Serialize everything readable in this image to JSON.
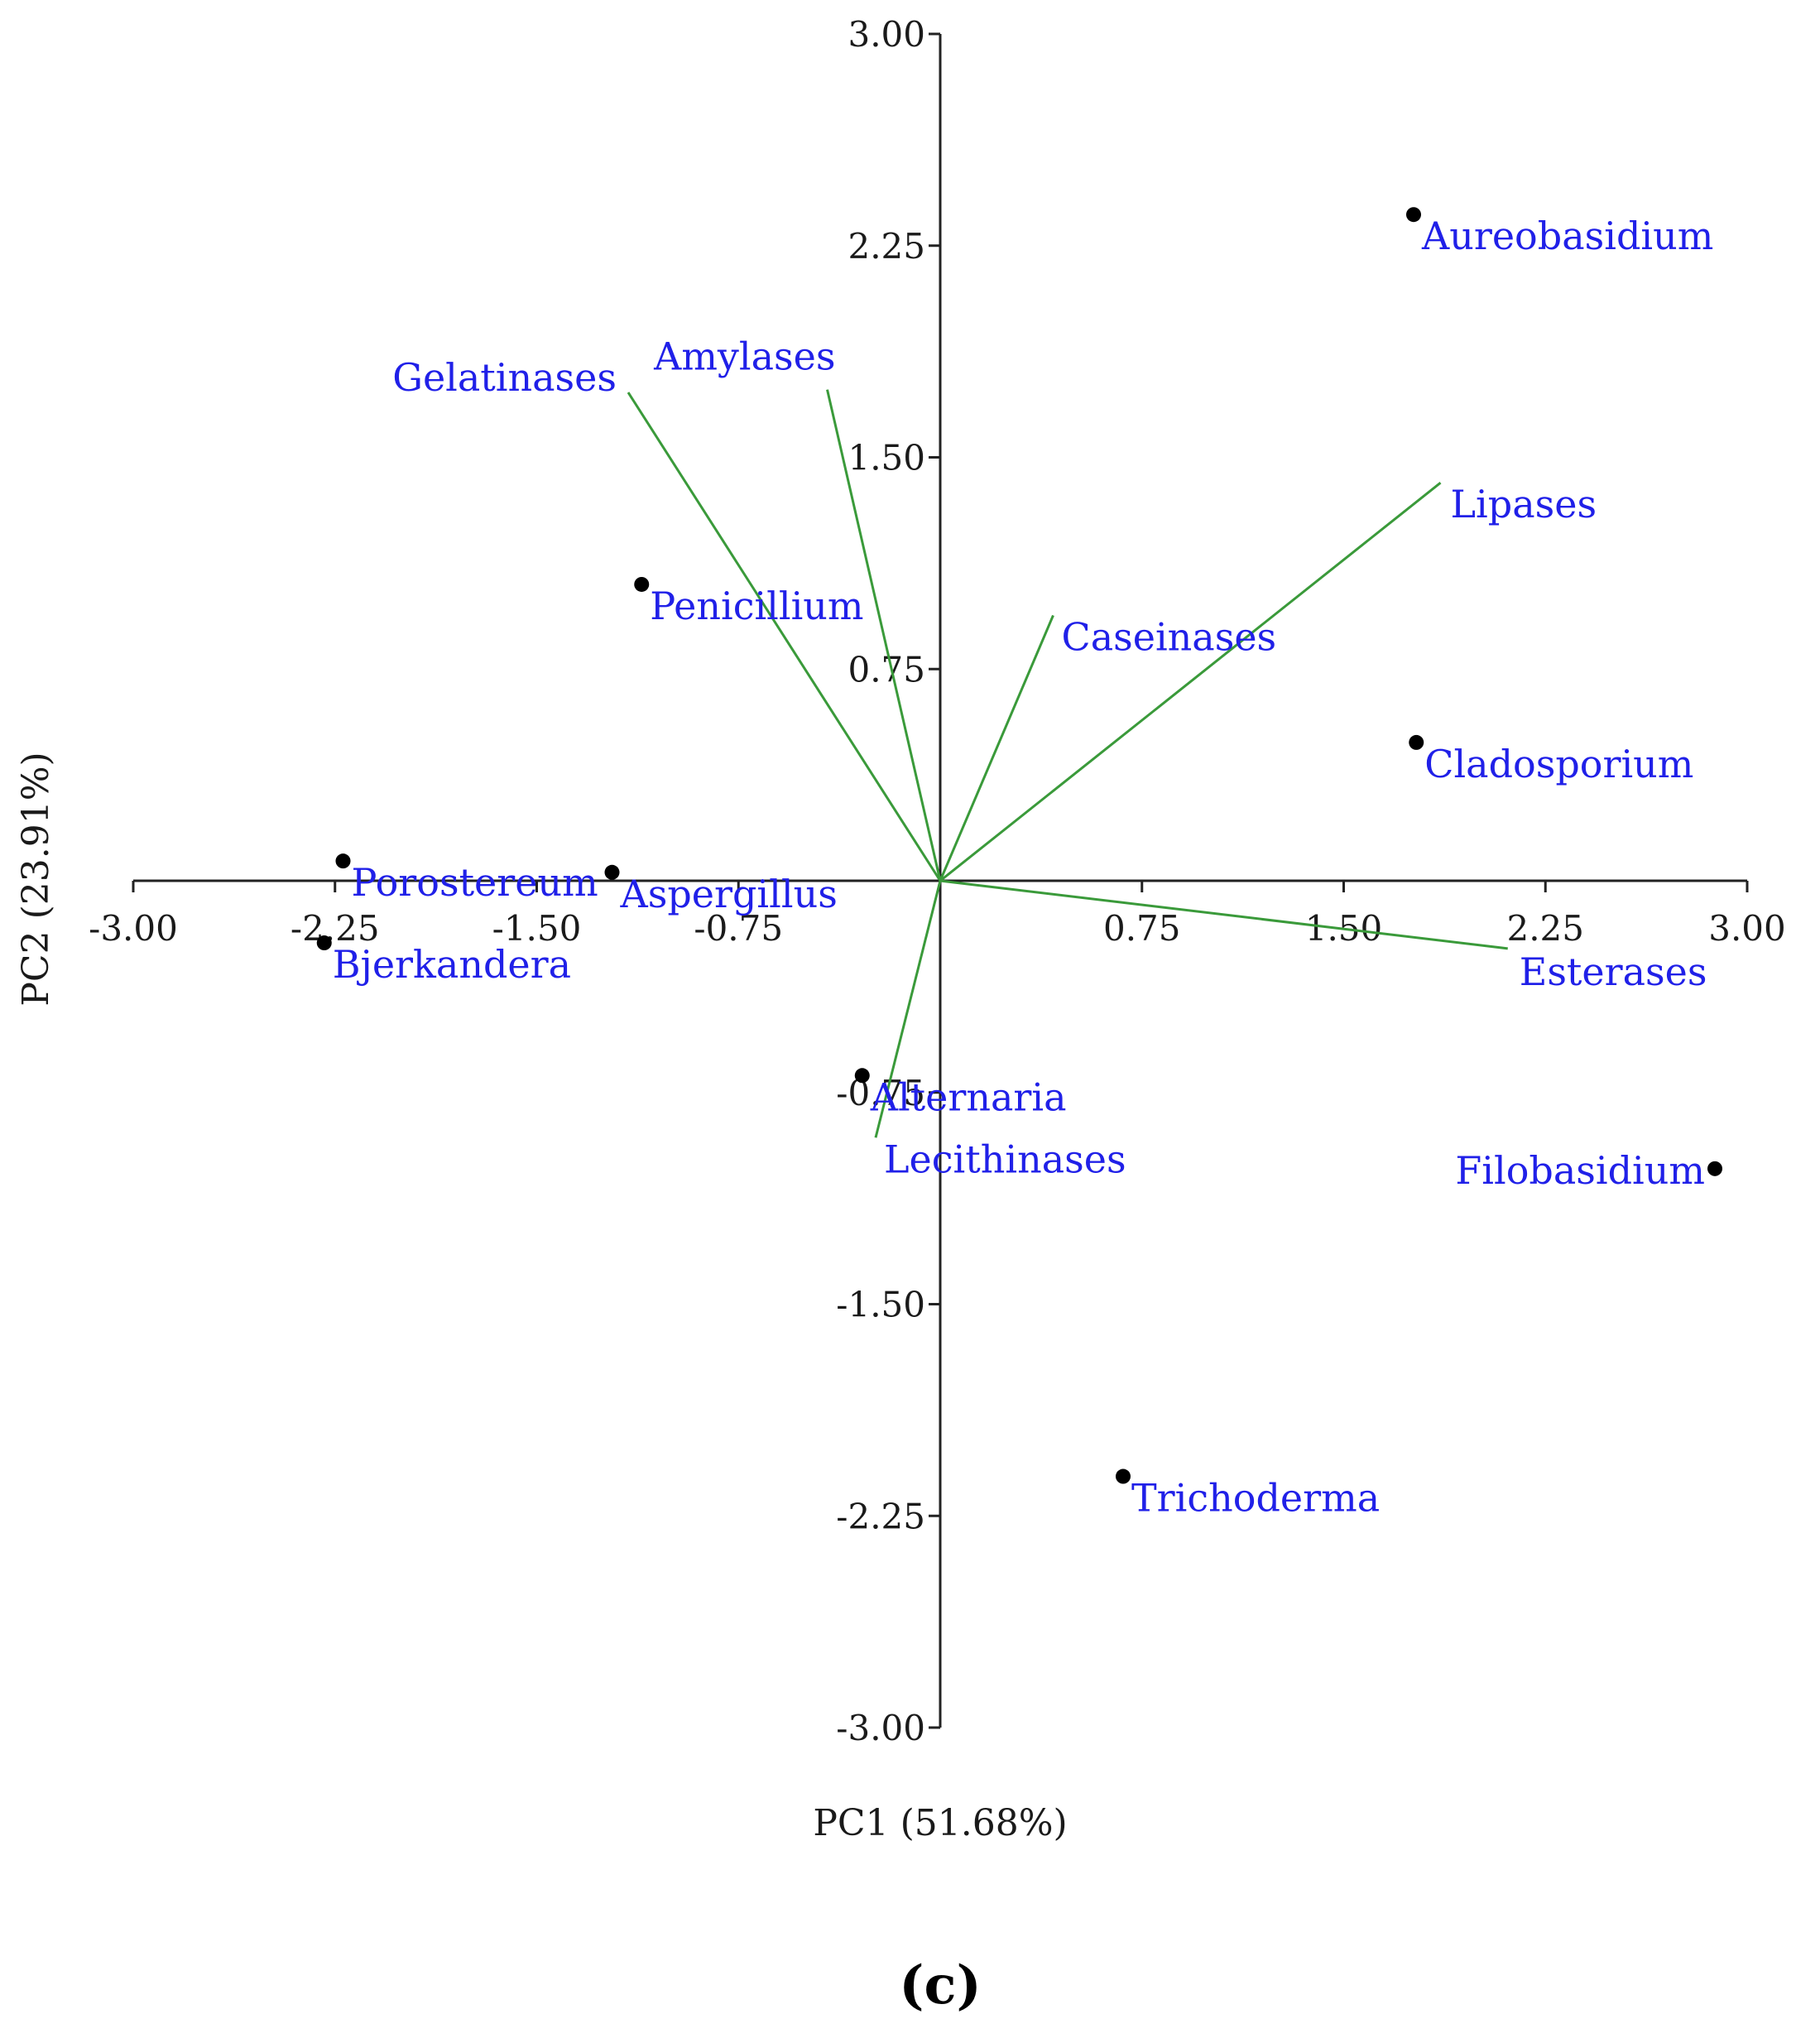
{
  "panel_label": "(c)",
  "chart_data": {
    "type": "scatter",
    "subtype": "biplot",
    "xlabel": "PC1 (51.68%)",
    "ylabel": "PC2 (23.91%)",
    "xlim": [
      -3.0,
      3.0
    ],
    "ylim": [
      -3.0,
      3.0
    ],
    "xticks": [
      "-3.00",
      "-2.25",
      "-1.50",
      "-0.75",
      "0.75",
      "1.50",
      "2.25",
      "3.00"
    ],
    "yticks": [
      "3.00",
      "2.25",
      "1.50",
      "0.75",
      "-0.75",
      "-1.50",
      "-2.25",
      "-3.00"
    ],
    "grid": false,
    "point_color": "#000000",
    "label_color": "#2020e8",
    "vector_color": "#3a9a3a",
    "points": [
      {
        "label": "Aureobasidium",
        "x": 1.76,
        "y": 2.36
      },
      {
        "label": "Penicillium",
        "x": -1.11,
        "y": 1.05
      },
      {
        "label": "Cladosporium",
        "x": 1.77,
        "y": 0.49
      },
      {
        "label": "Porostereum",
        "x": -2.22,
        "y": 0.07
      },
      {
        "label": "Aspergillus",
        "x": -1.22,
        "y": 0.03
      },
      {
        "label": "Bjerkandera",
        "x": -2.29,
        "y": -0.22
      },
      {
        "label": "Alternaria",
        "x": -0.29,
        "y": -0.69
      },
      {
        "label": "Filobasidium",
        "x": 2.88,
        "y": -1.02
      },
      {
        "label": "Trichoderma",
        "x": 0.68,
        "y": -2.11
      }
    ],
    "vectors": [
      {
        "label": "Gelatinases",
        "x": -1.16,
        "y": 1.73
      },
      {
        "label": "Amylases",
        "x": -0.42,
        "y": 1.74
      },
      {
        "label": "Lipases",
        "x": 1.86,
        "y": 1.41
      },
      {
        "label": "Caseinases",
        "x": 0.42,
        "y": 0.94
      },
      {
        "label": "Esterases",
        "x": 2.11,
        "y": -0.24
      },
      {
        "label": "Lecithinases",
        "x": -0.24,
        "y": -0.91
      }
    ]
  }
}
